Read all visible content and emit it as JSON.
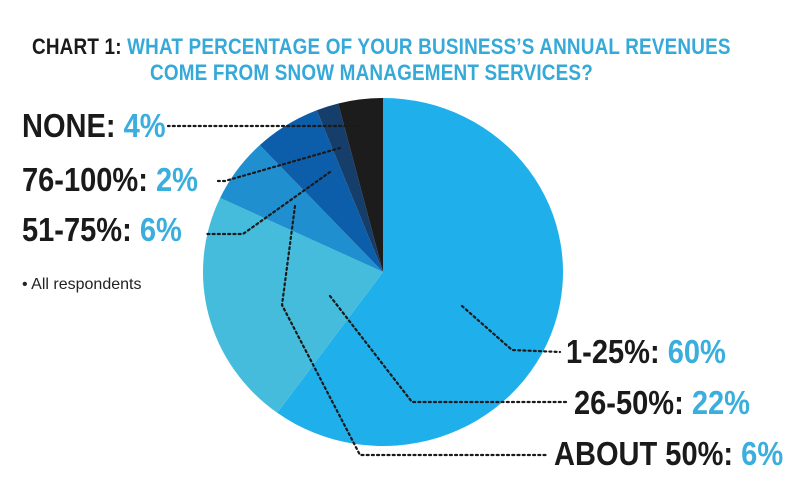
{
  "title": {
    "prefix": "CHART 1:",
    "line1": "WHAT PERCENTAGE OF YOUR BUSINESS’S ANNUAL REVENUES",
    "line2": "COME FROM SNOW MANAGEMENT SERVICES?"
  },
  "note": "• All respondents",
  "colors": {
    "title_accent": "#35a9d8",
    "label_value": "#3aaedc",
    "text": "#1a1a1a"
  },
  "chart_data": {
    "type": "pie",
    "title": "CHART 1: WHAT PERCENTAGE OF YOUR BUSINESS’S ANNUAL REVENUES COME FROM SNOW MANAGEMENT SERVICES?",
    "start": "12 o'clock",
    "direction": "clockwise",
    "slices": [
      {
        "label": "1-25%:",
        "value_label": "60%",
        "value": 60,
        "color": "#1fb0ec"
      },
      {
        "label": "26-50%:",
        "value_label": "22%",
        "value": 22,
        "color": "#45bcdb"
      },
      {
        "label": "ABOUT 50%:",
        "value_label": "6%",
        "value": 6,
        "color": "#1f8fd0"
      },
      {
        "label": "51-75%:",
        "value_label": "6%",
        "value": 6,
        "color": "#0d5eaa"
      },
      {
        "label": "76-100%:",
        "value_label": "2%",
        "value": 2,
        "color": "#163e6a"
      },
      {
        "label": "NONE:",
        "value_label": "4%",
        "value": 4,
        "color": "#1c1c1c"
      }
    ]
  }
}
